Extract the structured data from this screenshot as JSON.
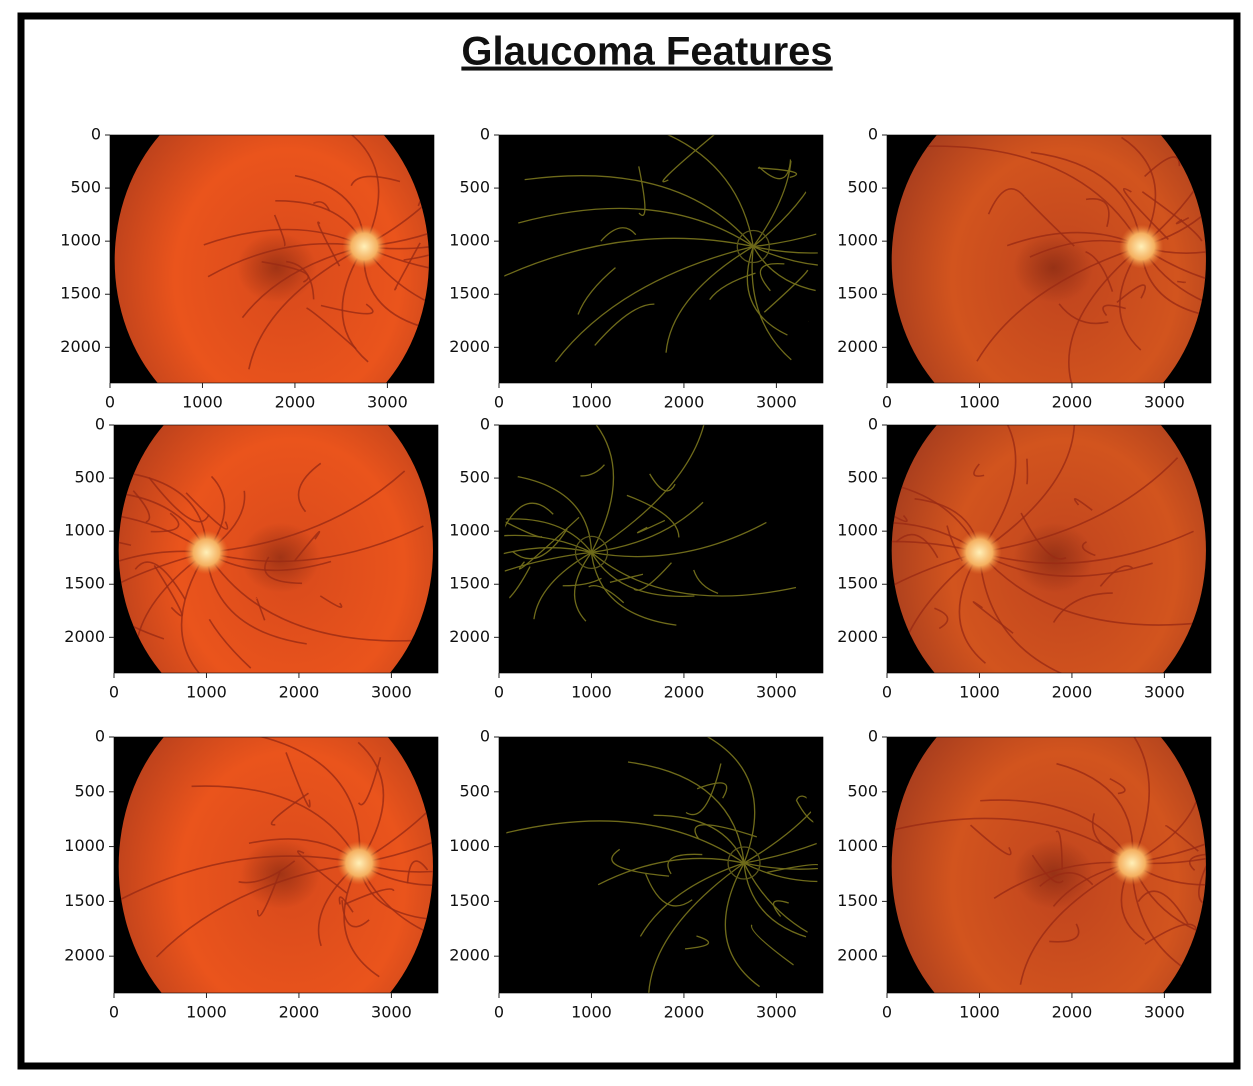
{
  "title": "Glaucoma Features",
  "chart_data": [
    {
      "type": "image",
      "image": "fundus",
      "xlim": [
        0,
        3504
      ],
      "ylim": [
        0,
        2336
      ],
      "invert_y": true,
      "xticks": [
        0,
        1000,
        2000,
        3000
      ],
      "yticks": [
        0,
        500,
        1000,
        1500,
        2000
      ]
    },
    {
      "type": "image",
      "image": "vessels",
      "xlim": [
        0,
        3504
      ],
      "ylim": [
        0,
        2336
      ],
      "invert_y": true,
      "xticks": [
        0,
        1000,
        2000,
        3000
      ],
      "yticks": [
        0,
        500,
        1000,
        1500,
        2000
      ]
    },
    {
      "type": "image",
      "image": "fundus-dim",
      "xlim": [
        0,
        3504
      ],
      "ylim": [
        0,
        2336
      ],
      "invert_y": true,
      "xticks": [
        0,
        1000,
        2000,
        3000
      ],
      "yticks": [
        0,
        500,
        1000,
        1500,
        2000
      ]
    },
    {
      "type": "image",
      "image": "fundus",
      "xlim": [
        0,
        3504
      ],
      "ylim": [
        0,
        2336
      ],
      "invert_y": true,
      "xticks": [
        0,
        1000,
        2000,
        3000
      ],
      "yticks": [
        0,
        500,
        1000,
        1500,
        2000
      ]
    },
    {
      "type": "image",
      "image": "vessels",
      "xlim": [
        0,
        3504
      ],
      "ylim": [
        0,
        2336
      ],
      "invert_y": true,
      "xticks": [
        0,
        1000,
        2000,
        3000
      ],
      "yticks": [
        0,
        500,
        1000,
        1500,
        2000
      ]
    },
    {
      "type": "image",
      "image": "fundus-dim",
      "xlim": [
        0,
        3504
      ],
      "ylim": [
        0,
        2336
      ],
      "invert_y": true,
      "xticks": [
        0,
        1000,
        2000,
        3000
      ],
      "yticks": [
        0,
        500,
        1000,
        1500,
        2000
      ]
    },
    {
      "type": "image",
      "image": "fundus",
      "xlim": [
        0,
        3504
      ],
      "ylim": [
        0,
        2336
      ],
      "invert_y": true,
      "xticks": [
        0,
        1000,
        2000,
        3000
      ],
      "yticks": [
        0,
        500,
        1000,
        1500,
        2000
      ]
    },
    {
      "type": "image",
      "image": "vessels",
      "xlim": [
        0,
        3504
      ],
      "ylim": [
        0,
        2336
      ],
      "invert_y": true,
      "xticks": [
        0,
        1000,
        2000,
        3000
      ],
      "yticks": [
        0,
        500,
        1000,
        1500,
        2000
      ]
    },
    {
      "type": "image",
      "image": "fundus-dim",
      "xlim": [
        0,
        3504
      ],
      "ylim": [
        0,
        2336
      ],
      "invert_y": true,
      "xticks": [
        0,
        1000,
        2000,
        3000
      ],
      "yticks": [
        0,
        500,
        1000,
        1500,
        2000
      ]
    }
  ]
}
